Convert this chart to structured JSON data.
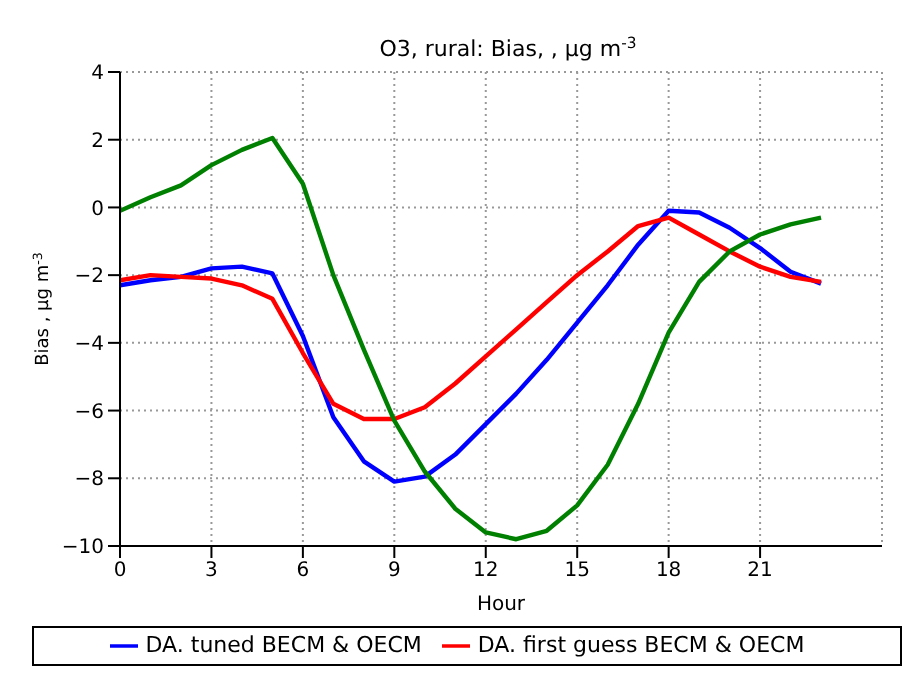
{
  "chart_data": {
    "type": "line",
    "title": "O3, rural: Bias, , μg m$^{-3}$",
    "xlabel": "Hour",
    "ylabel": "Bias , μg m$^{-3}$",
    "x": [
      0,
      1,
      2,
      3,
      4,
      5,
      6,
      7,
      8,
      9,
      10,
      11,
      12,
      13,
      14,
      15,
      16,
      17,
      18,
      19,
      20,
      21,
      22,
      23
    ],
    "series": [
      {
        "name": "DA. tuned BECM & OECM",
        "color": "#0000ff",
        "values": [
          -2.3,
          -2.15,
          -2.05,
          -1.8,
          -1.75,
          -1.95,
          -3.8,
          -6.2,
          -7.5,
          -8.1,
          -7.95,
          -7.3,
          -6.4,
          -5.5,
          -4.5,
          -3.4,
          -2.3,
          -1.1,
          -0.1,
          -0.15,
          -0.6,
          -1.2,
          -1.9,
          -2.25
        ]
      },
      {
        "name": "DA. first guess BECM & OECM",
        "color": "#ff0000",
        "values": [
          -2.15,
          -2.0,
          -2.05,
          -2.1,
          -2.3,
          -2.7,
          -4.3,
          -5.8,
          -6.25,
          -6.25,
          -5.9,
          -5.2,
          -4.4,
          -3.6,
          -2.8,
          -2.0,
          -1.3,
          -0.55,
          -0.3,
          -0.8,
          -1.3,
          -1.75,
          -2.05,
          -2.2
        ]
      },
      {
        "color": "#008000",
        "values": [
          -0.1,
          0.3,
          0.65,
          1.25,
          1.7,
          2.05,
          0.7,
          -2.0,
          -4.2,
          -6.3,
          -7.8,
          -8.9,
          -9.6,
          -9.8,
          -9.55,
          -8.8,
          -7.6,
          -5.8,
          -3.7,
          -2.2,
          -1.3,
          -0.8,
          -0.5,
          -0.3
        ]
      }
    ],
    "xlim": [
      0,
      25
    ],
    "xticks": [
      0,
      3,
      6,
      9,
      12,
      15,
      18,
      21
    ],
    "ylim": [
      -10,
      4
    ],
    "yticks": [
      -10,
      -8,
      -6,
      -4,
      -2,
      0,
      2,
      4
    ],
    "grid": true,
    "legend": "bottom",
    "marker": "none",
    "line_style": "solid"
  }
}
